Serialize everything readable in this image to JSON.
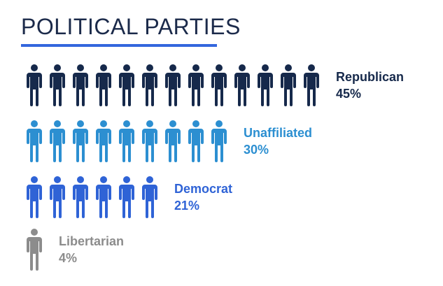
{
  "title": "POLITICAL PARTIES",
  "colors": {
    "title": "#1b2a4a",
    "underline": "#3366dd"
  },
  "chart_data": {
    "type": "pictograph",
    "title": "POLITICAL PARTIES",
    "unit_icon": "person-icon",
    "series": [
      {
        "name": "Republican",
        "value": 45,
        "value_label": "45%",
        "icons": 13,
        "color": "#16294b"
      },
      {
        "name": "Unaffiliated",
        "value": 30,
        "value_label": "30%",
        "icons": 9,
        "color": "#2c8fd1"
      },
      {
        "name": "Democrat",
        "value": 21,
        "value_label": "21%",
        "icons": 6,
        "color": "#2f63d6"
      },
      {
        "name": "Libertarian",
        "value": 4,
        "value_label": "4%",
        "icons": 1,
        "color": "#8c8c8c"
      }
    ]
  }
}
